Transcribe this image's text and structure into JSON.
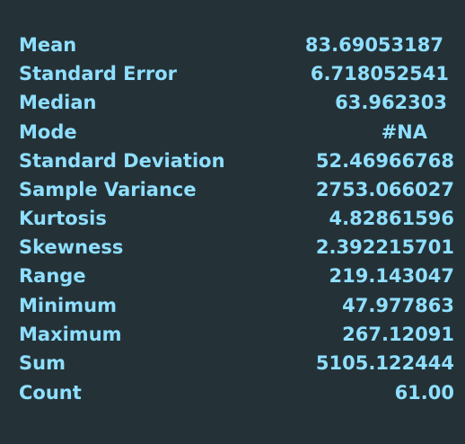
{
  "statistics": [
    {
      "label": "Mean",
      "value": "83.69053187"
    },
    {
      "label": "Standard Error",
      "value": "6.718052541"
    },
    {
      "label": "Median",
      "value": "63.962303"
    },
    {
      "label": "Mode",
      "value": "#NA"
    },
    {
      "label": "Standard Deviation",
      "value": "52.46966768"
    },
    {
      "label": "Sample Variance",
      "value": "2753.066027"
    },
    {
      "label": "Kurtosis",
      "value": "4.82861596"
    },
    {
      "label": "Skewness",
      "value": "2.392215701"
    },
    {
      "label": "Range",
      "value": "219.143047"
    },
    {
      "label": "Minimum",
      "value": "47.977863"
    },
    {
      "label": "Maximum",
      "value": "267.12091"
    },
    {
      "label": "Sum",
      "value": "5105.122444"
    },
    {
      "label": "Count",
      "value": "61.00"
    }
  ],
  "colors": {
    "background": "#243238",
    "text": "#8fdfff"
  }
}
